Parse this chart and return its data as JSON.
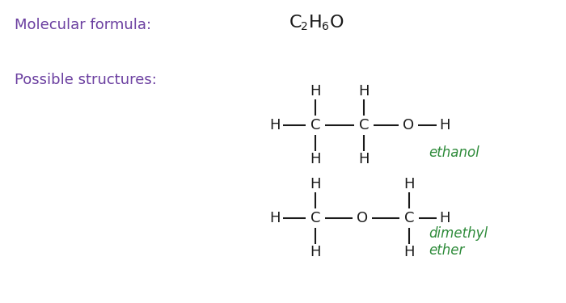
{
  "bg_color": "#ffffff",
  "purple_color": "#6B3FA0",
  "green_color": "#2E8B3A",
  "black_color": "#1a1a1a",
  "label_molecular": "Molecular formula:",
  "label_possible": "Possible structures:",
  "ethanol_label": "ethanol",
  "dimethyl_label": "dimethyl\nether",
  "font_size_main": 13,
  "font_size_formula_big": 16,
  "font_size_formula_sub": 10,
  "font_size_struct": 13,
  "font_size_green": 12
}
